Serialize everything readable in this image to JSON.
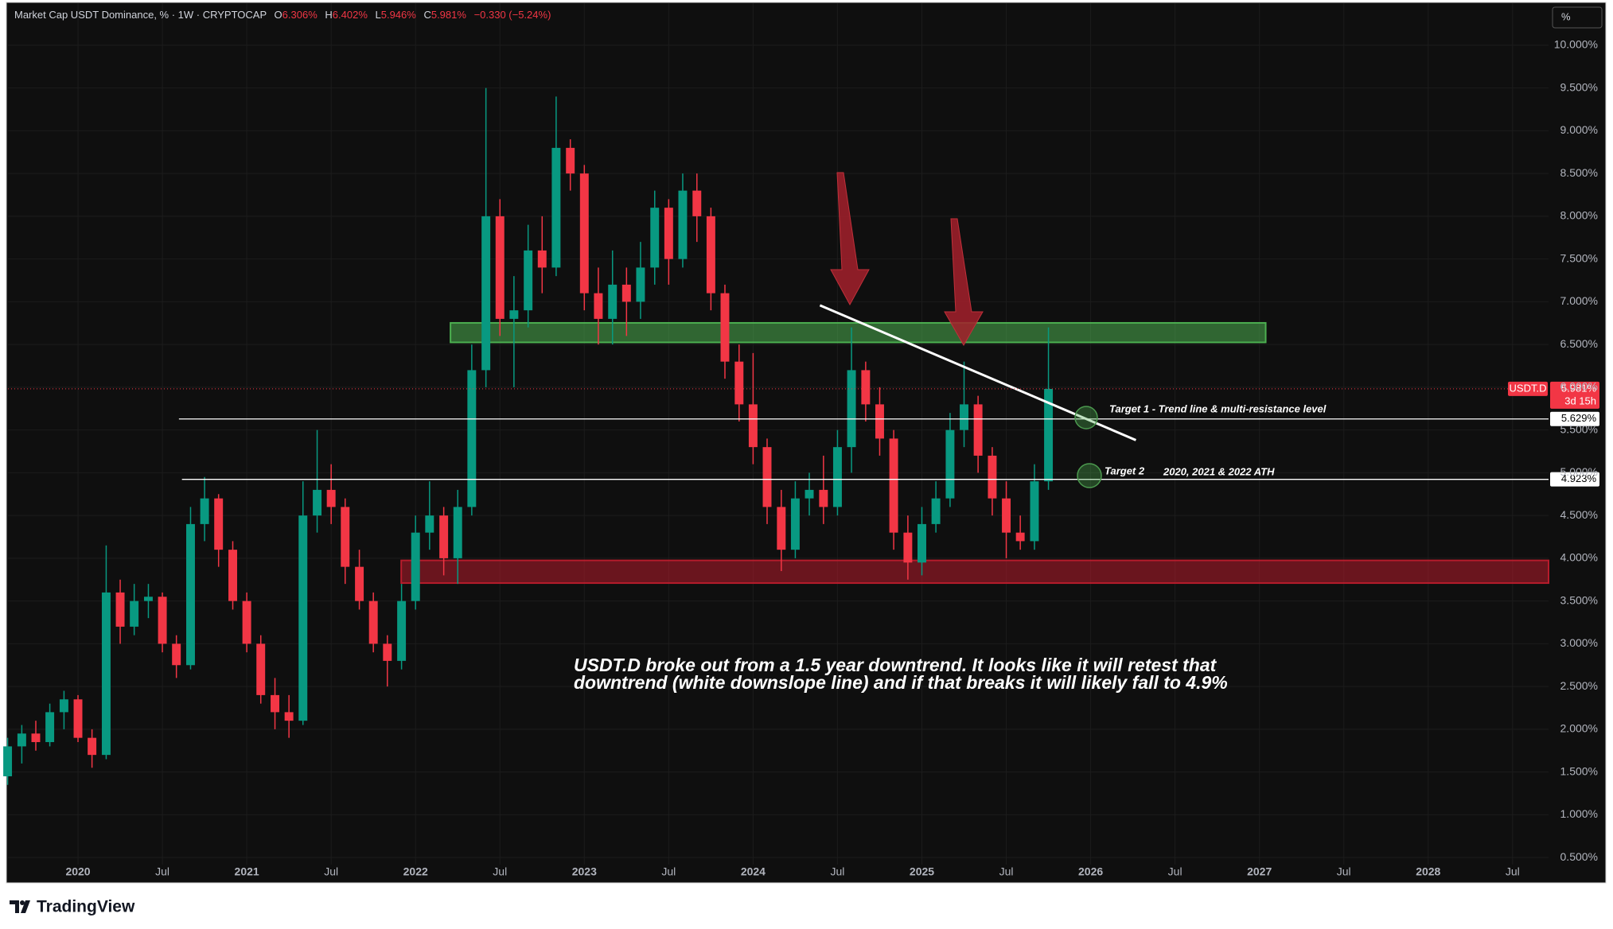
{
  "chart_data": {
    "type": "candlestick",
    "header": {
      "title": "Market Cap USDT Dominance, % · 1W · CRYPTOCAP",
      "fields": [
        {
          "key": "O",
          "value": "6.306%"
        },
        {
          "key": "H",
          "value": "6.402%"
        },
        {
          "key": "L",
          "value": "5.946%"
        },
        {
          "key": "C",
          "value": "5.981%"
        }
      ],
      "change": "−0.330 (−5.24%)"
    },
    "scale_button": "%",
    "up_color": "#089981",
    "down_color": "#f23645",
    "x": [
      2019.583,
      2019.667,
      2019.75,
      2019.833,
      2019.917,
      2020,
      2020.083,
      2020.167,
      2020.25,
      2020.333,
      2020.417,
      2020.5,
      2020.583,
      2020.667,
      2020.75,
      2020.833,
      2020.917,
      2021,
      2021.083,
      2021.167,
      2021.25,
      2021.333,
      2021.417,
      2021.5,
      2021.583,
      2021.667,
      2021.75,
      2021.833,
      2021.917,
      2022,
      2022.083,
      2022.167,
      2022.25,
      2022.333,
      2022.417,
      2022.5,
      2022.583,
      2022.667,
      2022.75,
      2022.833,
      2022.917,
      2023,
      2023.083,
      2023.167,
      2023.25,
      2023.333,
      2023.417,
      2023.5,
      2023.583,
      2023.667,
      2023.75,
      2023.833,
      2023.917,
      2024,
      2024.083,
      2024.167,
      2024.25,
      2024.333,
      2024.417,
      2024.5,
      2024.583,
      2024.667,
      2024.75,
      2024.833,
      2024.917,
      2025,
      2025.083,
      2025.167,
      2025.25,
      2025.333,
      2025.417,
      2025.5,
      2025.583,
      2025.667,
      2025.75
    ],
    "open": [
      1.45,
      1.8,
      1.95,
      1.85,
      2.2,
      2.35,
      1.9,
      1.7,
      3.6,
      3.2,
      3.5,
      3.55,
      3.0,
      2.75,
      4.4,
      4.7,
      4.1,
      3.5,
      3.0,
      2.4,
      2.2,
      2.1,
      4.5,
      4.8,
      4.6,
      3.9,
      3.5,
      3.0,
      2.8,
      3.5,
      4.3,
      4.5,
      4.0,
      4.6,
      6.2,
      8.0,
      6.8,
      6.9,
      7.6,
      7.4,
      8.8,
      8.5,
      7.1,
      6.8,
      7.2,
      7.0,
      7.4,
      8.1,
      7.5,
      8.3,
      8.0,
      7.1,
      6.3,
      5.8,
      5.3,
      4.6,
      4.1,
      4.7,
      4.8,
      4.6,
      5.3,
      6.2,
      5.8,
      5.4,
      4.3,
      3.95,
      4.4,
      4.7,
      5.5,
      5.8,
      5.2,
      4.7,
      4.3,
      4.2,
      4.9
    ],
    "high": [
      1.9,
      2.05,
      2.1,
      2.3,
      2.45,
      2.4,
      2.0,
      4.15,
      3.75,
      3.7,
      3.7,
      3.6,
      3.1,
      4.6,
      4.95,
      4.75,
      4.2,
      3.6,
      3.1,
      2.6,
      2.4,
      4.9,
      5.5,
      5.1,
      4.7,
      4.1,
      3.6,
      3.1,
      3.7,
      4.5,
      4.9,
      4.6,
      4.8,
      6.5,
      9.5,
      8.2,
      7.3,
      7.9,
      8.0,
      9.4,
      8.9,
      8.6,
      7.4,
      7.6,
      7.4,
      7.7,
      8.3,
      8.2,
      8.5,
      8.5,
      8.1,
      7.2,
      6.5,
      6.4,
      5.4,
      4.8,
      4.9,
      5.0,
      5.2,
      5.5,
      6.7,
      6.3,
      6.0,
      5.5,
      4.5,
      4.6,
      4.9,
      5.7,
      6.3,
      5.9,
      5.3,
      4.9,
      4.5,
      5.1,
      6.7
    ],
    "low": [
      1.35,
      1.6,
      1.75,
      1.8,
      2.0,
      1.85,
      1.55,
      1.65,
      3.0,
      3.1,
      3.3,
      2.9,
      2.6,
      2.7,
      4.2,
      3.9,
      3.4,
      2.9,
      2.3,
      2.0,
      1.9,
      2.05,
      4.3,
      4.4,
      3.7,
      3.4,
      2.9,
      2.5,
      2.7,
      3.4,
      4.1,
      3.8,
      3.7,
      4.5,
      6.0,
      6.6,
      6.0,
      6.7,
      7.1,
      7.3,
      8.3,
      6.9,
      6.5,
      6.5,
      6.6,
      6.8,
      7.2,
      7.2,
      7.4,
      7.7,
      6.9,
      6.1,
      5.6,
      5.1,
      4.4,
      3.85,
      4.0,
      4.5,
      4.4,
      4.5,
      5.0,
      5.6,
      5.2,
      4.1,
      3.75,
      3.8,
      4.3,
      4.6,
      5.3,
      5.0,
      4.5,
      4.0,
      4.1,
      4.1,
      4.8
    ],
    "close": [
      1.8,
      1.95,
      1.85,
      2.2,
      2.35,
      1.9,
      1.7,
      3.6,
      3.2,
      3.5,
      3.55,
      3.0,
      2.75,
      4.4,
      4.7,
      4.1,
      3.5,
      3.0,
      2.4,
      2.2,
      2.1,
      4.5,
      4.8,
      4.6,
      3.9,
      3.5,
      3.0,
      2.8,
      3.5,
      4.3,
      4.5,
      4.0,
      4.6,
      6.2,
      8.0,
      6.8,
      6.9,
      7.6,
      7.4,
      8.8,
      8.5,
      7.1,
      6.8,
      7.2,
      7.0,
      7.4,
      8.1,
      7.5,
      8.3,
      8.0,
      7.1,
      6.3,
      5.8,
      5.3,
      4.6,
      4.1,
      4.7,
      4.8,
      4.6,
      5.3,
      6.2,
      5.8,
      5.4,
      4.3,
      3.95,
      4.4,
      4.7,
      5.5,
      5.8,
      5.2,
      4.7,
      4.3,
      4.2,
      4.9,
      5.981
    ],
    "xlim": [
      2019.585,
      2028.713
    ],
    "xticks": [
      2020,
      {
        "value": 2020.5,
        "label": "Jul"
      },
      2021,
      {
        "value": 2021.5,
        "label": "Jul"
      },
      2022,
      {
        "value": 2022.5,
        "label": "Jul"
      },
      2023,
      {
        "value": 2023.5,
        "label": "Jul"
      },
      2024,
      {
        "value": 2024.5,
        "label": "Jul"
      },
      2025,
      {
        "value": 2025.5,
        "label": "Jul"
      },
      2026,
      {
        "value": 2026.5,
        "label": "Jul"
      },
      2027,
      {
        "value": 2027.5,
        "label": "Jul"
      },
      2028,
      {
        "value": 2028.5,
        "label": "Jul"
      }
    ],
    "ylim": [
      0.213,
      10.492
    ],
    "yticks": [
      {
        "value": 0.5,
        "label": "0.500%"
      },
      {
        "value": 1,
        "label": "1.000%"
      },
      {
        "value": 1.5,
        "label": "1.500%"
      },
      {
        "value": 2,
        "label": "2.000%"
      },
      {
        "value": 2.5,
        "label": "2.500%"
      },
      {
        "value": 3,
        "label": "3.000%"
      },
      {
        "value": 3.5,
        "label": "3.500%"
      },
      {
        "value": 4,
        "label": "4.000%"
      },
      {
        "value": 4.5,
        "label": "4.500%"
      },
      {
        "value": 5,
        "label": "5.000%"
      },
      {
        "value": 5.5,
        "label": "5.500%"
      },
      {
        "value": 6,
        "label": "6.000%"
      },
      {
        "value": 6.5,
        "label": "6.500%"
      },
      {
        "value": 7,
        "label": "7.000%"
      },
      {
        "value": 7.5,
        "label": "7.500%"
      },
      {
        "value": 8,
        "label": "8.000%"
      },
      {
        "value": 8.5,
        "label": "8.500%"
      },
      {
        "value": 9,
        "label": "9.000%"
      },
      {
        "value": 9.5,
        "label": "9.500%"
      },
      {
        "value": 10,
        "label": "10.000%"
      }
    ],
    "grid": true,
    "last_price": {
      "value": 5.981,
      "label": "5.981%"
    },
    "symbol_tag": "USDT.D",
    "countdown": "3d 15h",
    "zones": [
      {
        "x": [
          2022.207,
          2027.037
        ],
        "y": [
          6.525,
          6.753
        ],
        "color": "#4caf50"
      },
      {
        "x": [
          2021.915,
          2028.713
        ],
        "y": [
          3.71,
          3.975
        ],
        "color": "#b71c2c"
      }
    ],
    "trend_line": {
      "x": [
        2024.396,
        2026.268
      ],
      "y": [
        6.958,
        5.382
      ]
    },
    "levels": [
      {
        "value": 5.629,
        "label": "5.629%",
        "from_x": 2020.598
      },
      {
        "value": 4.923,
        "label": "4.923%",
        "from_x": 2020.616
      }
    ],
    "annotations": {
      "target1": "Target 1 - Trend line & multi-resistance level",
      "target2": "Target 2",
      "ath": "2020, 2021 & 2022 ATH",
      "note": [
        "USDT.D broke out from a 1.5 year downtrend. It looks like it will retest that",
        "downtrend (white downslope line) and if  that breaks it will likely fall to 4.9%"
      ]
    }
  },
  "footer": {
    "brand": "TradingView"
  }
}
